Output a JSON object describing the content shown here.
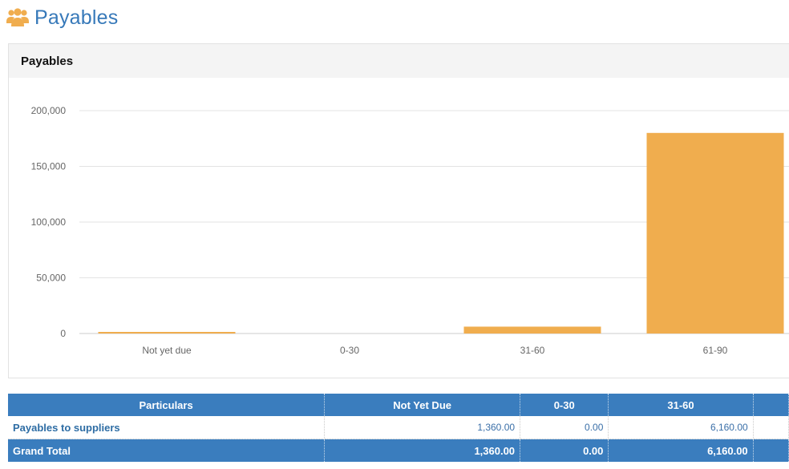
{
  "page": {
    "title": "Payables"
  },
  "panel": {
    "title": "Payables"
  },
  "colors": {
    "accent": "#3779b9",
    "bar": "#f0ad4e",
    "table_header": "#3a7dbe"
  },
  "chart_data": {
    "type": "bar",
    "categories": [
      "Not yet due",
      "0-30",
      "31-60",
      "61-90"
    ],
    "values": [
      1360,
      0,
      6160,
      180000
    ],
    "ylim": [
      0,
      200000
    ],
    "yticks": [
      0,
      50000,
      100000,
      150000,
      200000
    ],
    "ytick_labels": [
      "0",
      "50,000",
      "100,000",
      "150,000",
      "200,000"
    ],
    "grid": true
  },
  "table": {
    "headers": [
      "Particulars",
      "Not Yet Due",
      "0-30",
      "31-60"
    ],
    "rows": [
      {
        "label": "Payables to suppliers",
        "values": [
          "1,360.00",
          "0.00",
          "6,160.00"
        ]
      }
    ],
    "total": {
      "label": "Grand Total",
      "values": [
        "1,360.00",
        "0.00",
        "6,160.00"
      ]
    }
  }
}
